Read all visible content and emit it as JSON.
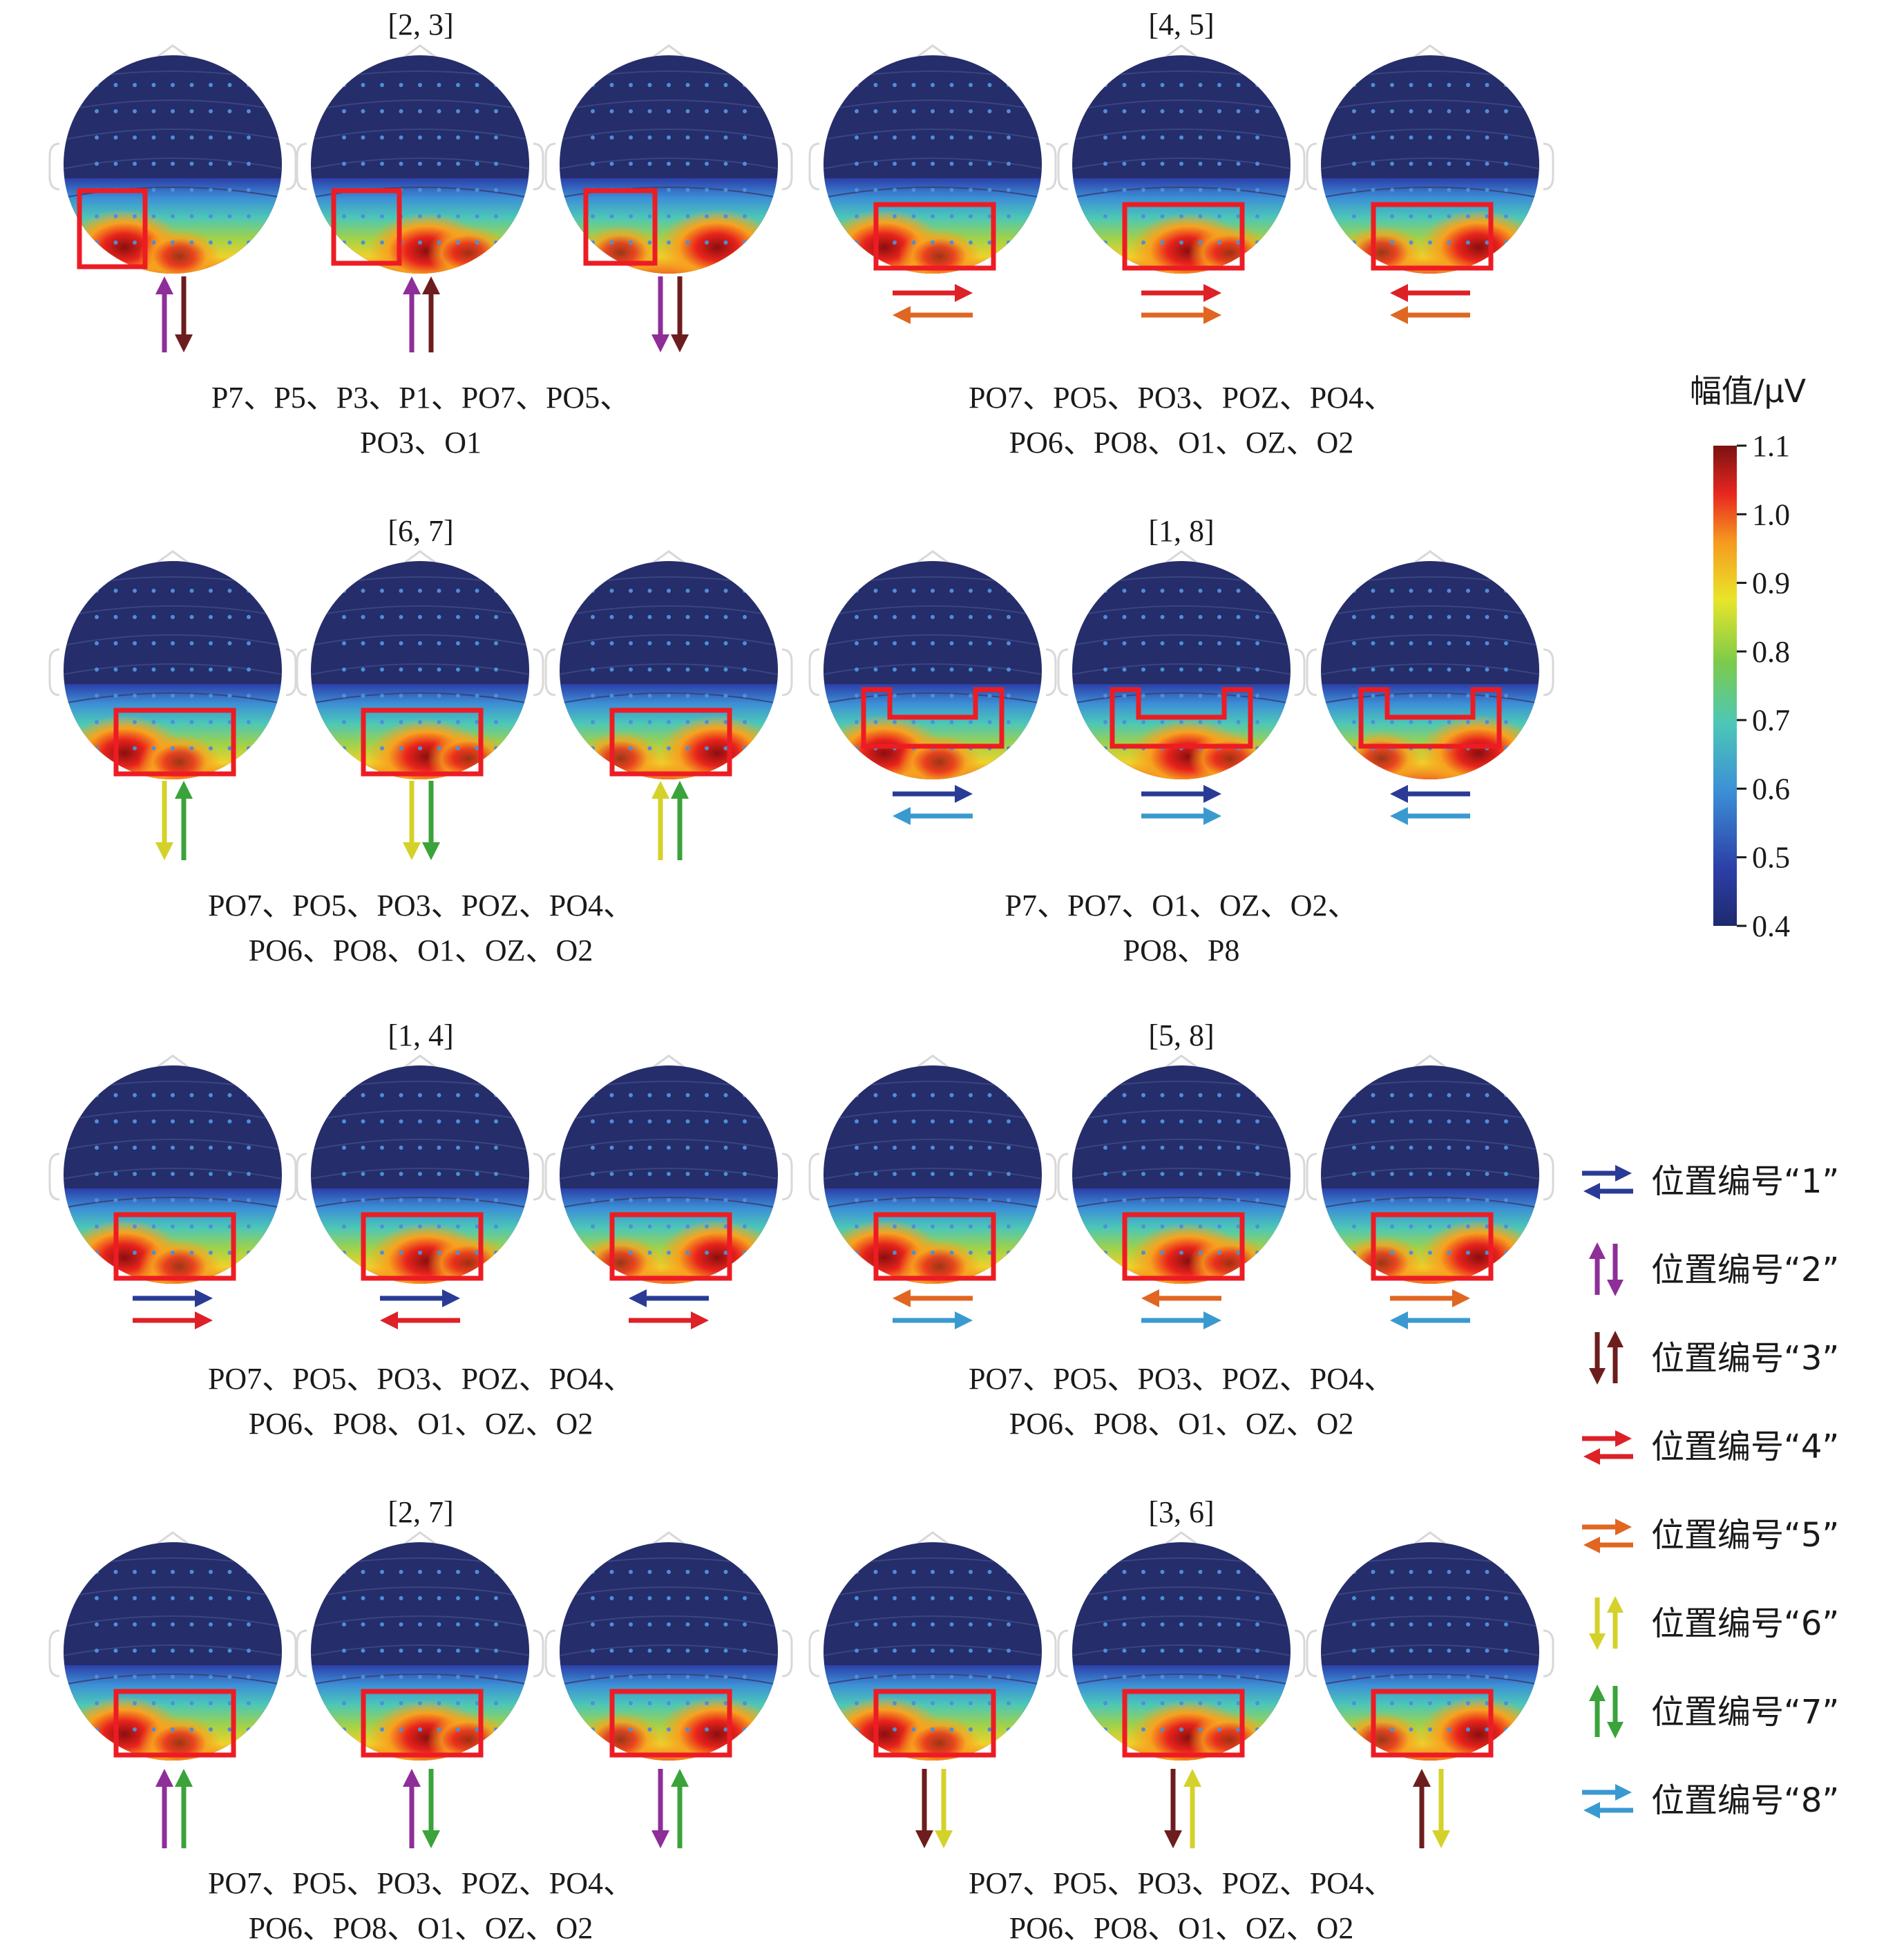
{
  "colors": {
    "head_bg": "#252d6a",
    "highlight_box": "#ed1c24",
    "pos1": "#2a3b96",
    "pos2": "#8e2e98",
    "pos3": "#6d1d1d",
    "pos4": "#dd2127",
    "pos5": "#e06622",
    "pos6": "#d4d22a",
    "pos7": "#3aa33a",
    "pos8": "#3a9ad0"
  },
  "groups": [
    {
      "pair": "[2, 3]",
      "channels": [
        "P7、P5、P3、P1、PO7、PO5、",
        "PO3、O1"
      ],
      "arrows": [
        [
          "up:pos2",
          "down:pos3"
        ],
        [
          "up:pos2",
          "up:pos3"
        ],
        [
          "down:pos2",
          "down:pos3"
        ]
      ]
    },
    {
      "pair": "[4, 5]",
      "channels": [
        "PO7、PO5、PO3、POZ、PO4、",
        "PO6、PO8、O1、OZ、O2"
      ],
      "arrows": [
        [
          "right:pos4",
          "left:pos5"
        ],
        [
          "right:pos4",
          "right:pos5"
        ],
        [
          "left:pos4",
          "left:pos5"
        ]
      ]
    },
    {
      "pair": "[6, 7]",
      "channels": [
        "PO7、PO5、PO3、POZ、PO4、",
        "PO6、PO8、O1、OZ、O2"
      ],
      "arrows": [
        [
          "down:pos6",
          "up:pos7"
        ],
        [
          "down:pos6",
          "down:pos7"
        ],
        [
          "up:pos6",
          "up:pos7"
        ]
      ]
    },
    {
      "pair": "[1, 8]",
      "channels": [
        "P7、PO7、O1、OZ、O2、",
        "PO8、P8"
      ],
      "arrows": [
        [
          "right:pos1",
          "left:pos8"
        ],
        [
          "right:pos1",
          "right:pos8"
        ],
        [
          "left:pos1",
          "left:pos8"
        ]
      ]
    },
    {
      "pair": "[1, 4]",
      "channels": [
        "PO7、PO5、PO3、POZ、PO4、",
        "PO6、PO8、O1、OZ、O2"
      ],
      "arrows": [
        [
          "right:pos1",
          "right:pos4"
        ],
        [
          "right:pos1",
          "left:pos4"
        ],
        [
          "left:pos1",
          "right:pos4"
        ]
      ]
    },
    {
      "pair": "[5, 8]",
      "channels": [
        "PO7、PO5、PO3、POZ、PO4、",
        "PO6、PO8、O1、OZ、O2"
      ],
      "arrows": [
        [
          "left:pos5",
          "right:pos8"
        ],
        [
          "left:pos5",
          "right:pos8"
        ],
        [
          "right:pos5",
          "left:pos8"
        ]
      ]
    },
    {
      "pair": "[2, 7]",
      "channels": [
        "PO7、PO5、PO3、POZ、PO4、",
        "PO6、PO8、O1、OZ、O2"
      ],
      "arrows": [
        [
          "up:pos2",
          "up:pos7"
        ],
        [
          "up:pos2",
          "down:pos7"
        ],
        [
          "down:pos2",
          "up:pos7"
        ]
      ]
    },
    {
      "pair": "[3, 6]",
      "channels": [
        "PO7、PO5、PO3、POZ、PO4、",
        "PO6、PO8、O1、OZ、O2"
      ],
      "arrows": [
        [
          "down:pos3",
          "down:pos6"
        ],
        [
          "down:pos3",
          "up:pos6"
        ],
        [
          "up:pos3",
          "down:pos6"
        ]
      ]
    }
  ],
  "colorbar": {
    "title": "幅值/μV",
    "ticks": [
      "1.1",
      "1.0",
      "0.9",
      "0.8",
      "0.7",
      "0.6",
      "0.5",
      "0.4"
    ]
  },
  "legend": [
    {
      "label": "位置编号“1”",
      "color": "pos1",
      "kind": "horizontal"
    },
    {
      "label": "位置编号“2”",
      "color": "pos2",
      "kind": "vertical"
    },
    {
      "label": "位置编号“3”",
      "color": "pos3",
      "kind": "vertical"
    },
    {
      "label": "位置编号“4”",
      "color": "pos4",
      "kind": "horizontal"
    },
    {
      "label": "位置编号“5”",
      "color": "pos5",
      "kind": "horizontal"
    },
    {
      "label": "位置编号“6”",
      "color": "pos6",
      "kind": "vertical"
    },
    {
      "label": "位置编号“7”",
      "color": "pos7",
      "kind": "vertical"
    },
    {
      "label": "位置编号“8”",
      "color": "pos8",
      "kind": "horizontal"
    }
  ]
}
